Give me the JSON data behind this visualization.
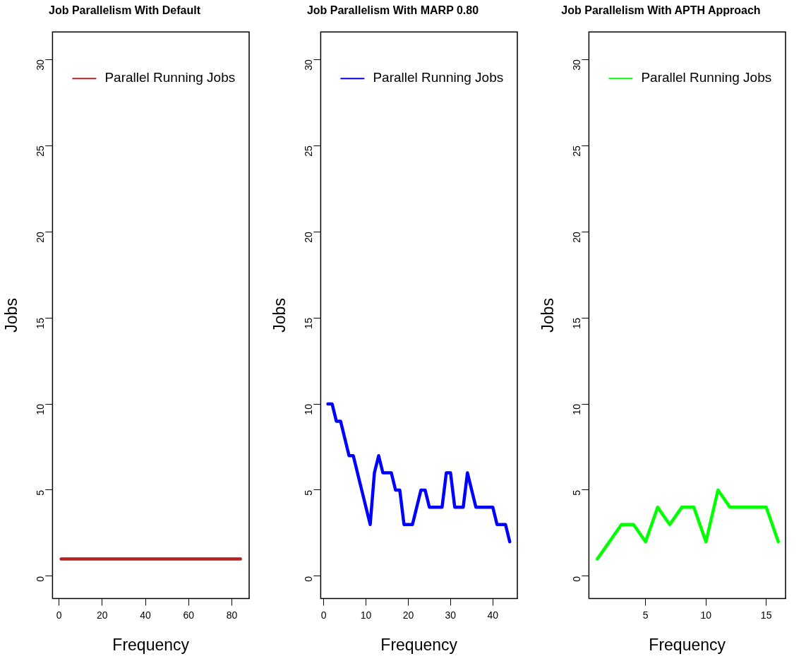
{
  "chart_data": [
    {
      "type": "line",
      "title": "Job Parallelism With Default",
      "xlabel": "Frequency",
      "ylabel": "Jobs",
      "legend": "top",
      "marker": "none",
      "line_style": "solid",
      "grid": false,
      "xlim": [
        -3,
        88
      ],
      "xticks": [
        0,
        20,
        40,
        60,
        80
      ],
      "ylim": [
        -1.3,
        31.6
      ],
      "yticks": [
        0,
        5,
        10,
        15,
        20,
        25,
        30
      ],
      "series": [
        {
          "name": "Parallel Running Jobs",
          "color": "#b22222",
          "x": [
            1,
            84
          ],
          "values": [
            1,
            1
          ]
        }
      ]
    },
    {
      "type": "line",
      "title": "Job Parallelism With MARP 0.80",
      "xlabel": "Frequency",
      "ylabel": "Jobs",
      "legend": "top",
      "marker": "none",
      "line_style": "solid",
      "grid": false,
      "xlim": [
        -0.7,
        45.8
      ],
      "xticks": [
        0,
        10,
        20,
        30,
        40
      ],
      "ylim": [
        -1.3,
        31.6
      ],
      "yticks": [
        0,
        5,
        10,
        15,
        20,
        25,
        30
      ],
      "series": [
        {
          "name": "Parallel Running Jobs",
          "color": "#0000ff",
          "x": [
            1,
            2,
            3,
            4,
            6,
            7,
            11,
            12,
            13,
            14,
            16,
            17,
            18,
            19,
            21,
            23,
            24,
            25,
            28,
            29,
            30,
            31,
            33,
            34,
            36,
            40,
            41,
            43,
            44
          ],
          "values": [
            10,
            10,
            9,
            9,
            7,
            7,
            3,
            6,
            7,
            6,
            6,
            5,
            5,
            3,
            3,
            5,
            5,
            4,
            4,
            6,
            6,
            4,
            4,
            6,
            4,
            4,
            3,
            3,
            2
          ]
        }
      ]
    },
    {
      "type": "line",
      "title": "Job Parallelism With APTH Approach",
      "xlabel": "Frequency",
      "ylabel": "Jobs",
      "legend": "top",
      "marker": "none",
      "line_style": "solid",
      "grid": false,
      "xlim": [
        0.3,
        16.6
      ],
      "xticks": [
        5,
        10,
        15
      ],
      "ylim": [
        -1.3,
        31.6
      ],
      "yticks": [
        0,
        5,
        10,
        15,
        20,
        25,
        30
      ],
      "series": [
        {
          "name": "Parallel Running Jobs",
          "color": "#00ff00",
          "x": [
            1,
            2,
            3,
            4,
            5,
            6,
            7,
            8,
            9,
            10,
            11,
            12,
            13,
            14,
            15,
            16
          ],
          "values": [
            1,
            2,
            3,
            3,
            2,
            4,
            3,
            4,
            4,
            2,
            5,
            4,
            4,
            4,
            4,
            2
          ]
        }
      ]
    }
  ]
}
